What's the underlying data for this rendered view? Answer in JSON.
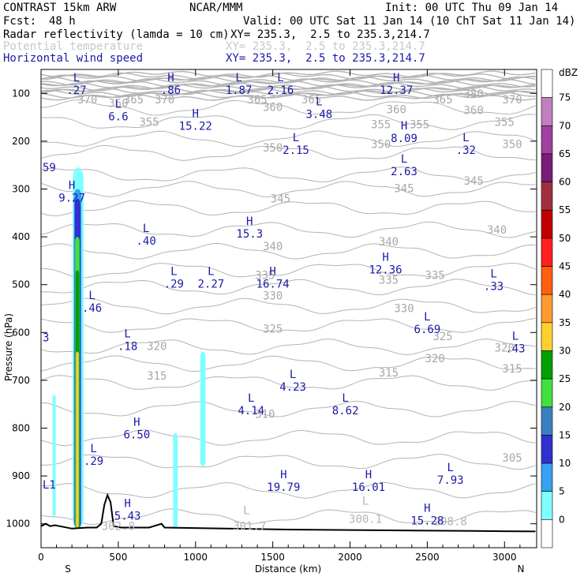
{
  "header": {
    "model": "CONTRAST 15km ARW",
    "center": "NCAR/MMM",
    "init": "Init: 00 UTC Thu 09 Jan 14",
    "fcst_label": "Fcst:",
    "fcst_value": "48 h",
    "valid": "Valid: 00 UTC Sat 11 Jan 14 (10 ChT Sat 11 Jan 14)",
    "field1": "Radar reflectivity (lamda = 10 cm)",
    "field1_xy": "XY= 235.3,  2.5 to 235.3,214.7",
    "field2": "Potential temperature",
    "field2_xy": "XY= 235.3,  2.5 to 235.3,214.7",
    "field3": "Horizontal wind speed",
    "field3_xy": "XY= 235.3,  2.5 to 235.3,214.7"
  },
  "colors": {
    "wind_label": "#1a1aa8",
    "theta_contour": "#b4b4b4",
    "terrain": "#000000"
  },
  "chart_data": {
    "type": "heatmap",
    "xlabel": "Distance (km)",
    "ylabel": "Pressure (hPa)",
    "xlim": [
      0,
      3200
    ],
    "ylim": [
      1050,
      50
    ],
    "x_ticks": [
      "0",
      "500",
      "1000",
      "1500",
      "2000",
      "2500",
      "3000"
    ],
    "y_ticks": [
      "100",
      "200",
      "300",
      "400",
      "500",
      "600",
      "700",
      "800",
      "900",
      "1000"
    ],
    "x_end_labels": {
      "left": "S",
      "right": "N"
    },
    "colorbar": {
      "unit": "dBZ",
      "levels": [
        "75",
        "70",
        "65",
        "60",
        "55",
        "50",
        "45",
        "40",
        "35",
        "30",
        "25",
        "20",
        "15",
        "10",
        "5",
        "0"
      ],
      "colors": [
        "#ffffff",
        "#c080c0",
        "#a040a0",
        "#7a1c7a",
        "#a03040",
        "#c00000",
        "#ff2020",
        "#ff6010",
        "#ff9a30",
        "#ffd030",
        "#00a000",
        "#40e040",
        "#3a80c0",
        "#3030d0",
        "#3aa0f0",
        "#80ffff",
        "#ffffff"
      ]
    },
    "theta_labels": [
      {
        "x": 300,
        "p": 113,
        "v": "370"
      },
      {
        "x": 600,
        "p": 113,
        "v": "365"
      },
      {
        "x": 800,
        "p": 113,
        "v": "370"
      },
      {
        "x": 1400,
        "p": 113,
        "v": "365"
      },
      {
        "x": 1750,
        "p": 113,
        "v": "365"
      },
      {
        "x": 2600,
        "p": 113,
        "v": "365"
      },
      {
        "x": 2800,
        "p": 100,
        "v": "380"
      },
      {
        "x": 3050,
        "p": 113,
        "v": "370"
      },
      {
        "x": 500,
        "p": 120,
        "v": "360"
      },
      {
        "x": 1500,
        "p": 128,
        "v": "360"
      },
      {
        "x": 2300,
        "p": 133,
        "v": "360"
      },
      {
        "x": 2800,
        "p": 135,
        "v": "360"
      },
      {
        "x": 700,
        "p": 160,
        "v": "355"
      },
      {
        "x": 2200,
        "p": 165,
        "v": "355"
      },
      {
        "x": 2450,
        "p": 165,
        "v": "355"
      },
      {
        "x": 3000,
        "p": 160,
        "v": "355"
      },
      {
        "x": 1500,
        "p": 213,
        "v": "350"
      },
      {
        "x": 2200,
        "p": 206,
        "v": "350"
      },
      {
        "x": 3050,
        "p": 206,
        "v": "350"
      },
      {
        "x": 2350,
        "p": 298,
        "v": "345"
      },
      {
        "x": 1550,
        "p": 320,
        "v": "345"
      },
      {
        "x": 2800,
        "p": 283,
        "v": "345"
      },
      {
        "x": 1500,
        "p": 420,
        "v": "340"
      },
      {
        "x": 2250,
        "p": 410,
        "v": "340"
      },
      {
        "x": 2950,
        "p": 385,
        "v": "340"
      },
      {
        "x": 1450,
        "p": 480,
        "v": "335"
      },
      {
        "x": 2250,
        "p": 490,
        "v": "335"
      },
      {
        "x": 2550,
        "p": 480,
        "v": "335"
      },
      {
        "x": 1500,
        "p": 523,
        "v": "330"
      },
      {
        "x": 2350,
        "p": 549,
        "v": "330"
      },
      {
        "x": 1500,
        "p": 592,
        "v": "325"
      },
      {
        "x": 2600,
        "p": 608,
        "v": "325"
      },
      {
        "x": 750,
        "p": 628,
        "v": "320"
      },
      {
        "x": 2550,
        "p": 654,
        "v": "320"
      },
      {
        "x": 3000,
        "p": 632,
        "v": "320"
      },
      {
        "x": 750,
        "p": 690,
        "v": "315"
      },
      {
        "x": 2250,
        "p": 684,
        "v": "315"
      },
      {
        "x": 3050,
        "p": 675,
        "v": "315"
      },
      {
        "x": 1450,
        "p": 770,
        "v": "310"
      },
      {
        "x": 3050,
        "p": 862,
        "v": "305"
      }
    ],
    "theta_bottom_labels": [
      {
        "x": 500,
        "p": 1005,
        "v": "302.8"
      },
      {
        "x": 1350,
        "p": 1005,
        "v": "301.7"
      },
      {
        "x": 2100,
        "p": 990,
        "v": "300.1"
      },
      {
        "x": 2650,
        "p": 995,
        "v": "298.8"
      }
    ],
    "theta_bottom_L": [
      {
        "x": 1330,
        "p": 980
      },
      {
        "x": 2100,
        "p": 960
      }
    ],
    "wind_extrema": [
      {
        "type": "L",
        "x": 230,
        "p": 75,
        "v": ".27"
      },
      {
        "x": 840,
        "p": 75,
        "type": "H",
        "v": ".86"
      },
      {
        "type": "L",
        "x": 1280,
        "p": 75,
        "v": "1.87"
      },
      {
        "type": "L",
        "x": 1550,
        "p": 75,
        "v": "2.16"
      },
      {
        "type": "H",
        "x": 2300,
        "p": 75,
        "v": "12.37"
      },
      {
        "type": "L",
        "x": 500,
        "p": 130,
        "v": "6.6"
      },
      {
        "type": "L",
        "x": 1800,
        "p": 125,
        "v": "3.48"
      },
      {
        "type": "H",
        "x": 1000,
        "p": 150,
        "v": "15.22"
      },
      {
        "type": "H",
        "x": 2350,
        "p": 175,
        "v": "8.09"
      },
      {
        "type": "L",
        "x": 1650,
        "p": 200,
        "v": "2.15"
      },
      {
        "type": "L",
        "x": 2750,
        "p": 200,
        "v": ".32"
      },
      {
        "type": "L",
        "x": 2350,
        "p": 245,
        "v": "2.63"
      },
      {
        "type": "H",
        "x": 200,
        "p": 300,
        "v": "9.27"
      },
      {
        "type": "H",
        "x": 1350,
        "p": 375,
        "v": "15.3"
      },
      {
        "type": "L",
        "x": 680,
        "p": 390,
        "v": ".40"
      },
      {
        "type": "H",
        "x": 2230,
        "p": 450,
        "v": "12.36"
      },
      {
        "type": "L",
        "x": 860,
        "p": 480,
        "v": ".29"
      },
      {
        "type": "L",
        "x": 1100,
        "p": 480,
        "v": "2.27"
      },
      {
        "type": "H",
        "x": 1500,
        "p": 480,
        "v": "16.74"
      },
      {
        "type": "L",
        "x": 2930,
        "p": 485,
        "v": ".33"
      },
      {
        "type": "L",
        "x": 330,
        "p": 530,
        "v": ".46"
      },
      {
        "type": "L",
        "x": 2500,
        "p": 575,
        "v": "6.69"
      },
      {
        "type": "L",
        "x": 560,
        "p": 610,
        "v": ".18"
      },
      {
        "type": "L",
        "x": 3070,
        "p": 615,
        "v": ".43"
      },
      {
        "type": "L",
        "x": 1630,
        "p": 695,
        "v": "4.23"
      },
      {
        "type": "L",
        "x": 1360,
        "p": 745,
        "v": "4.14"
      },
      {
        "type": "L",
        "x": 1970,
        "p": 745,
        "v": "8.62"
      },
      {
        "type": "H",
        "x": 620,
        "p": 795,
        "v": "6.50"
      },
      {
        "type": "L",
        "x": 340,
        "p": 850,
        "v": ".29"
      },
      {
        "type": "L",
        "x": 2650,
        "p": 890,
        "v": "7.93"
      },
      {
        "type": "H",
        "x": 1570,
        "p": 905,
        "v": "19.79"
      },
      {
        "type": "H",
        "x": 2120,
        "p": 905,
        "v": "16.01"
      },
      {
        "type": "H",
        "x": 560,
        "p": 965,
        "v": "5.43"
      },
      {
        "type": "H",
        "x": 2500,
        "p": 975,
        "v": "15.28"
      }
    ],
    "edge_labels": [
      {
        "x": 0,
        "p": 255,
        "v": "59"
      },
      {
        "x": 0,
        "p": 610,
        "v": "3"
      },
      {
        "x": 0,
        "p": 918,
        "v": "L1"
      }
    ]
  }
}
